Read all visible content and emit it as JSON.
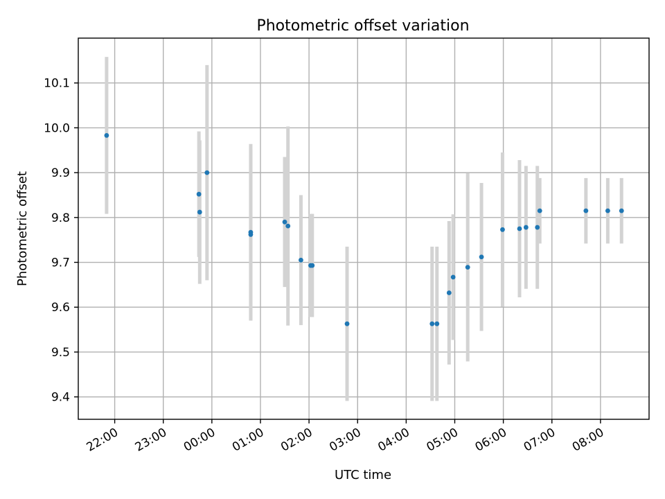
{
  "chart_data": {
    "type": "scatter",
    "title": "Photometric offset variation",
    "xlabel": "UTC time",
    "ylabel": "Photometric offset",
    "x_axis": "time",
    "x_start_date": "2023-01-01",
    "xlim": [
      "2023-01-01T21:15",
      "2023-01-02T09:00"
    ],
    "ylim": [
      9.35,
      10.2
    ],
    "x_ticks": [
      {
        "t": "2023-01-01T22:00",
        "label": "22:00"
      },
      {
        "t": "2023-01-01T23:00",
        "label": "23:00"
      },
      {
        "t": "2023-01-02T00:00",
        "label": "00:00"
      },
      {
        "t": "2023-01-02T01:00",
        "label": "01:00"
      },
      {
        "t": "2023-01-02T02:00",
        "label": "02:00"
      },
      {
        "t": "2023-01-02T03:00",
        "label": "03:00"
      },
      {
        "t": "2023-01-02T04:00",
        "label": "04:00"
      },
      {
        "t": "2023-01-02T05:00",
        "label": "05:00"
      },
      {
        "t": "2023-01-02T06:00",
        "label": "06:00"
      },
      {
        "t": "2023-01-02T07:00",
        "label": "07:00"
      },
      {
        "t": "2023-01-02T08:00",
        "label": "08:00"
      }
    ],
    "y_ticks": [
      9.4,
      9.5,
      9.6,
      9.7,
      9.8,
      9.9,
      10.0,
      10.1
    ],
    "y_tick_labels": [
      "9.4",
      "9.5",
      "9.6",
      "9.7",
      "9.8",
      "9.9",
      "10.0",
      "10.1"
    ],
    "grid": true,
    "marker_color": "#1f77b4",
    "errorbar_color": "#d3d3d3",
    "points": [
      {
        "t": "2023-01-01T21:50",
        "y": 9.983,
        "err": 0.175
      },
      {
        "t": "2023-01-01T23:44",
        "y": 9.852,
        "err": 0.14
      },
      {
        "t": "2023-01-01T23:45",
        "y": 9.812,
        "err": 0.16
      },
      {
        "t": "2023-01-01T23:54",
        "y": 9.9,
        "err": 0.24
      },
      {
        "t": "2023-01-02T00:48",
        "y": 9.767,
        "err": 0.197
      },
      {
        "t": "2023-01-02T00:48",
        "y": 9.762,
        "err": 0.19
      },
      {
        "t": "2023-01-02T01:30",
        "y": 9.79,
        "err": 0.145
      },
      {
        "t": "2023-01-02T01:34",
        "y": 9.781,
        "err": 0.222
      },
      {
        "t": "2023-01-02T01:50",
        "y": 9.705,
        "err": 0.145
      },
      {
        "t": "2023-01-02T02:02",
        "y": 9.693,
        "err": 0.115
      },
      {
        "t": "2023-01-02T02:04",
        "y": 9.693,
        "err": 0.115
      },
      {
        "t": "2023-01-02T02:47",
        "y": 9.563,
        "err": 0.172
      },
      {
        "t": "2023-01-02T04:32",
        "y": 9.563,
        "err": 0.172
      },
      {
        "t": "2023-01-02T04:38",
        "y": 9.563,
        "err": 0.172
      },
      {
        "t": "2023-01-02T04:53",
        "y": 9.632,
        "err": 0.16
      },
      {
        "t": "2023-01-02T04:58",
        "y": 9.667,
        "err": 0.14
      },
      {
        "t": "2023-01-02T05:16",
        "y": 9.689,
        "err": 0.21
      },
      {
        "t": "2023-01-02T05:33",
        "y": 9.712,
        "err": 0.165
      },
      {
        "t": "2023-01-02T05:59",
        "y": 9.773,
        "err": 0.172
      },
      {
        "t": "2023-01-02T06:20",
        "y": 9.775,
        "err": 0.153
      },
      {
        "t": "2023-01-02T06:28",
        "y": 9.778,
        "err": 0.137
      },
      {
        "t": "2023-01-02T06:42",
        "y": 9.778,
        "err": 0.137
      },
      {
        "t": "2023-01-02T06:45",
        "y": 9.815,
        "err": 0.073
      },
      {
        "t": "2023-01-02T07:42",
        "y": 9.815,
        "err": 0.073
      },
      {
        "t": "2023-01-02T08:09",
        "y": 9.815,
        "err": 0.073
      },
      {
        "t": "2023-01-02T08:26",
        "y": 9.815,
        "err": 0.073
      }
    ]
  }
}
